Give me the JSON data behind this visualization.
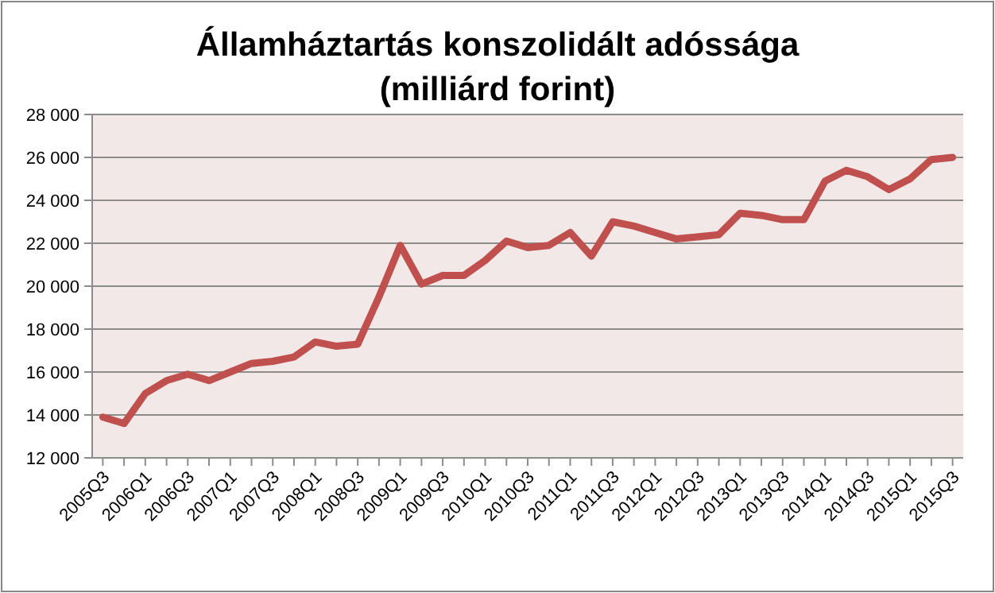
{
  "chart_data": {
    "type": "line",
    "title": "Államháztartás konszolidált adóssága",
    "subtitle": "(milliárd forint)",
    "categories": [
      "2005Q3",
      null,
      "2006Q1",
      null,
      "2006Q3",
      null,
      "2007Q1",
      null,
      "2007Q3",
      null,
      "2008Q1",
      null,
      "2008Q3",
      null,
      "2009Q1",
      null,
      "2009Q3",
      null,
      "2010Q1",
      null,
      "2010Q3",
      null,
      "2011Q1",
      null,
      "2011Q3",
      null,
      "2012Q1",
      null,
      "2012Q3",
      null,
      "2013Q1",
      null,
      "2013Q3",
      null,
      "2014Q1",
      null,
      "2014Q3",
      null,
      "2015Q1",
      null,
      "2015Q3"
    ],
    "series": [
      {
        "color": "#c0504d",
        "values": [
          13900,
          13600,
          15000,
          15600,
          15900,
          15600,
          16000,
          16400,
          16500,
          16700,
          17400,
          17200,
          17300,
          19500,
          21900,
          20100,
          20500,
          20500,
          21200,
          22100,
          21800,
          21900,
          22500,
          21400,
          23000,
          22800,
          22500,
          22200,
          22300,
          22400,
          23400,
          23300,
          23100,
          23100,
          24900,
          25400,
          25100,
          24500,
          25000,
          25900,
          26000
        ]
      }
    ],
    "ylim": [
      12000,
      28000
    ],
    "yticks": [
      {
        "value": 12000,
        "label": "12 000"
      },
      {
        "value": 14000,
        "label": "14 000"
      },
      {
        "value": 16000,
        "label": "16 000"
      },
      {
        "value": 18000,
        "label": "18 000"
      },
      {
        "value": 20000,
        "label": "20 000"
      },
      {
        "value": 22000,
        "label": "22 000"
      },
      {
        "value": 24000,
        "label": "24 000"
      },
      {
        "value": 26000,
        "label": "26 000"
      },
      {
        "value": 28000,
        "label": "28 000"
      }
    ],
    "grid": "y",
    "marker": "none",
    "line_style": "solid"
  }
}
